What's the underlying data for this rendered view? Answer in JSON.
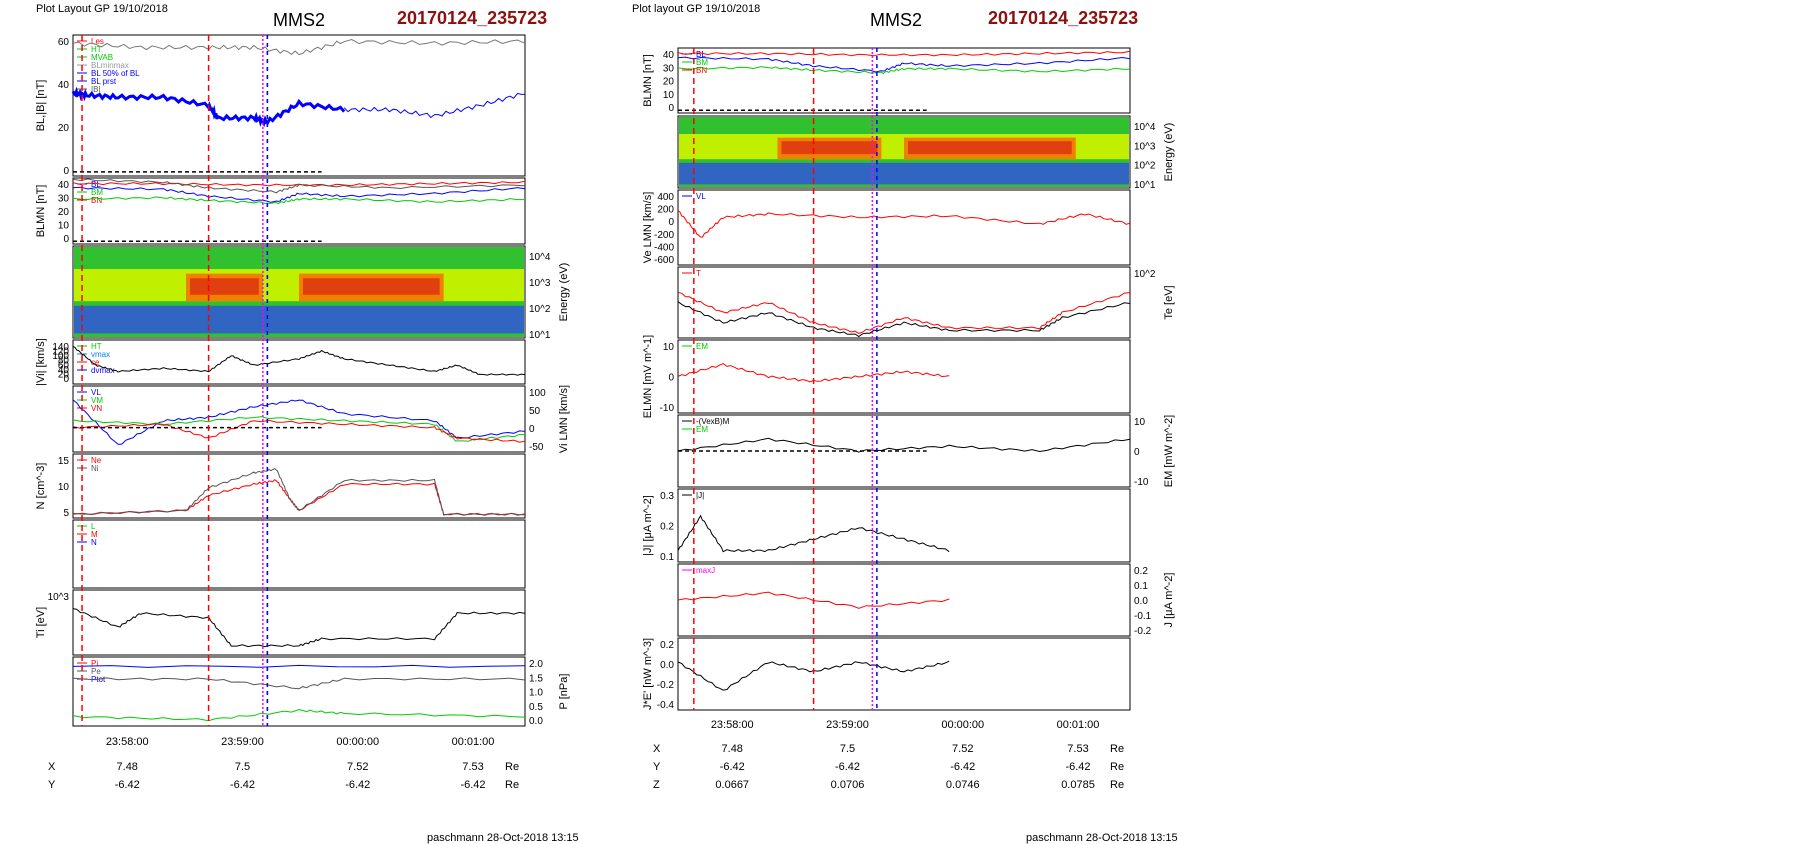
{
  "left": {
    "header_left": "Plot Layout GP 19/10/2018",
    "title": "MMS2",
    "event_id": "20170124_235723",
    "footer": "paschmann 28-Oct-2018 13:15",
    "time_ticks": [
      "23:58:00",
      "23:59:00",
      "00:00:00",
      "00:01:00"
    ],
    "ephemeris": {
      "rows": [
        {
          "label": "X",
          "values": [
            "7.48",
            "7.5",
            "7.52",
            "7.53"
          ],
          "unit": "Re"
        },
        {
          "label": "Y",
          "values": [
            "-6.42",
            "-6.42",
            "-6.42",
            "-6.42"
          ],
          "unit": "Re"
        },
        {
          "label": "Z",
          "values": [
            "0.0667",
            "0.0706",
            "0.0746",
            "0.0785"
          ],
          "unit": "Re"
        }
      ]
    }
  },
  "right": {
    "header_left": "Plot layout GP 19/10/2018",
    "title": "MMS2",
    "event_id": "20170124_235723",
    "footer": "paschmann 28-Oct-2018 13:15",
    "time_ticks": [
      "23:58:00",
      "23:59:00",
      "00:00:00",
      "00:01:00"
    ],
    "ephemeris": {
      "rows": [
        {
          "label": "X",
          "values": [
            "7.48",
            "7.5",
            "7.52",
            "7.53"
          ],
          "unit": "Re"
        },
        {
          "label": "Y",
          "values": [
            "-6.42",
            "-6.42",
            "-6.42",
            "-6.42"
          ],
          "unit": "Re"
        },
        {
          "label": "Z",
          "values": [
            "0.0667",
            "0.0706",
            "0.0746",
            "0.0785"
          ],
          "unit": "Re"
        }
      ]
    }
  },
  "chart_data": [
    {
      "type": "line",
      "page": "left",
      "panel": 1,
      "ylabel": "BL,|B| [nT]",
      "yticks": [
        "60",
        "40",
        "20",
        "0"
      ],
      "legend": [
        "Les",
        "HT",
        "MVAB",
        "BLminmax",
        "BL 50% of BL",
        "BL prst",
        "|B|"
      ],
      "series": [
        {
          "name": "|B|",
          "color": "#777777",
          "x": [
            0,
            0.15,
            0.3,
            0.4,
            0.5,
            0.6,
            0.8,
            1.0
          ],
          "values": [
            62,
            60,
            60,
            60,
            57,
            63,
            62,
            63
          ]
        },
        {
          "name": "BL",
          "color": "#0000ff",
          "x": [
            0,
            0.03,
            0.1,
            0.2,
            0.3,
            0.32,
            0.4,
            0.43,
            0.5,
            0.6
          ],
          "values": [
            38,
            37,
            36,
            36,
            32,
            26,
            26,
            24,
            33,
            30
          ]
        },
        {
          "name": "BL prst",
          "color": "#0000ff",
          "x": [
            0.6,
            0.7,
            0.8,
            0.9,
            1.0
          ],
          "values": [
            30,
            30,
            27,
            32,
            38
          ]
        }
      ],
      "ylim": [
        -2,
        66
      ]
    },
    {
      "type": "line",
      "page": "left",
      "panel": 2,
      "ylabel": "BLMN [nT]",
      "yticks": [
        "40",
        "30",
        "20",
        "10",
        "0"
      ],
      "legend": [
        "BL",
        "BM",
        "BN"
      ],
      "series": [
        {
          "name": "BL",
          "color": "#0000ff",
          "x": [
            0,
            0.2,
            0.3,
            0.45,
            0.5,
            0.6,
            0.8,
            1.0
          ],
          "values": [
            38,
            37,
            32,
            28,
            34,
            32,
            34,
            38
          ]
        },
        {
          "name": "BM",
          "color": "#00cc00",
          "x": [
            0,
            0.2,
            0.3,
            0.45,
            0.5,
            0.6,
            0.8,
            1.0
          ],
          "values": [
            30,
            31,
            29,
            27,
            30,
            30,
            28,
            30
          ]
        },
        {
          "name": "BN",
          "color": "#ff0000",
          "x": [
            0,
            0.2,
            0.4,
            0.6,
            0.8,
            1.0
          ],
          "values": [
            41,
            41,
            40,
            40,
            41,
            42
          ]
        },
        {
          "name": "|B|",
          "color": "#555555",
          "x": [
            0,
            0.2,
            0.3,
            0.45,
            0.5,
            0.7,
            1.0
          ],
          "values": [
            44,
            42,
            38,
            35,
            40,
            38,
            40
          ]
        }
      ],
      "ylim": [
        -2,
        45
      ]
    },
    {
      "type": "heatmap",
      "page": "left",
      "panel": 3,
      "ylabel": "Energy (eV)",
      "yticks": [
        "10^4",
        "10^3",
        "10^2",
        "10^1"
      ]
    },
    {
      "type": "line",
      "page": "left",
      "panel": 4,
      "ylabel": "|Vi| [km/s]",
      "yticks": [
        "140",
        "120",
        "100",
        "80",
        "60",
        "40",
        "20",
        "0"
      ],
      "legend": [
        "HT",
        "vmax",
        "ce",
        "dvmax"
      ],
      "series": [
        {
          "name": "|Vi|",
          "color": "#000000",
          "x": [
            0,
            0.05,
            0.1,
            0.2,
            0.3,
            0.35,
            0.4,
            0.5,
            0.55,
            0.6,
            0.7,
            0.8,
            0.85,
            0.9,
            1.0
          ],
          "values": [
            120,
            60,
            40,
            50,
            40,
            90,
            60,
            80,
            105,
            80,
            60,
            40,
            60,
            30,
            30
          ]
        }
      ],
      "ylim": [
        0,
        140
      ]
    },
    {
      "type": "line",
      "page": "left",
      "panel": 5,
      "ylabel": "Vi LMN [km/s]",
      "yticks": [
        "100",
        "50",
        "0",
        "-50"
      ],
      "legend": [
        "VL",
        "VM",
        "VN"
      ],
      "series": [
        {
          "name": "VL",
          "color": "#0000ff",
          "x": [
            0,
            0.1,
            0.2,
            0.3,
            0.4,
            0.5,
            0.6,
            0.8,
            0.85,
            1.0
          ],
          "values": [
            80,
            -50,
            20,
            30,
            60,
            80,
            40,
            20,
            -30,
            -10
          ]
        },
        {
          "name": "VM",
          "color": "#00cc00",
          "x": [
            0,
            0.2,
            0.4,
            0.6,
            0.8,
            0.85,
            1.0
          ],
          "values": [
            20,
            10,
            30,
            20,
            10,
            -40,
            -20
          ]
        },
        {
          "name": "VN",
          "color": "#ff0000",
          "x": [
            0,
            0.2,
            0.3,
            0.4,
            0.6,
            0.8,
            0.85,
            1.0
          ],
          "values": [
            0,
            10,
            -30,
            20,
            10,
            0,
            -30,
            -40
          ]
        }
      ],
      "ylim": [
        -70,
        120
      ]
    },
    {
      "type": "line",
      "page": "left",
      "panel": 6,
      "ylabel": "N [cm^-3]",
      "yticks": [
        "15",
        "10",
        "5"
      ],
      "legend": [
        "Ne",
        "Ni"
      ],
      "series": [
        {
          "name": "Ne",
          "color": "#ff0000",
          "x": [
            0,
            0.25,
            0.3,
            0.4,
            0.45,
            0.48,
            0.5,
            0.6,
            0.8,
            0.82,
            1.0
          ],
          "values": [
            1,
            2,
            6,
            9,
            10,
            5,
            2,
            9,
            9,
            1,
            1
          ]
        },
        {
          "name": "Ni",
          "color": "#555555",
          "x": [
            0,
            0.25,
            0.3,
            0.4,
            0.45,
            0.48,
            0.5,
            0.6,
            0.8,
            0.82,
            1.0
          ],
          "values": [
            1,
            2,
            8,
            12,
            13,
            5,
            2,
            10,
            10,
            1,
            1
          ]
        }
      ],
      "ylim": [
        0,
        17
      ]
    },
    {
      "type": "line",
      "page": "left",
      "panel": 7,
      "legend": [
        "L",
        "M",
        "N"
      ]
    },
    {
      "type": "line",
      "page": "left",
      "panel": 8,
      "ylabel": "Ti [eV]",
      "yticks": [
        "10^3"
      ],
      "series": [
        {
          "name": "Ti",
          "color": "#000000",
          "x": [
            0,
            0.1,
            0.15,
            0.3,
            0.35,
            0.5,
            0.55,
            0.8,
            0.85,
            1.0
          ],
          "values": [
            1100,
            700,
            1000,
            900,
            300,
            300,
            450,
            450,
            1000,
            1000
          ]
        }
      ],
      "ylim": [
        100,
        1500
      ]
    },
    {
      "type": "line",
      "page": "left",
      "panel": 9,
      "ylabel": "P [nPa]",
      "yticks": [
        "2.0",
        "1.5",
        "1.0",
        "0.5",
        "0.0"
      ],
      "legend": [
        "Pi",
        "Pe",
        "Ptot"
      ],
      "series": [
        {
          "name": "Ptot",
          "color": "#0000ff",
          "x": [
            0,
            1.0
          ],
          "values": [
            1.9,
            1.9
          ]
        },
        {
          "name": "Pi",
          "color": "#555555",
          "x": [
            0,
            0.3,
            0.5,
            0.6,
            1.0
          ],
          "values": [
            1.5,
            1.5,
            1.2,
            1.5,
            1.5
          ]
        },
        {
          "name": "Pe",
          "color": "#00cc00",
          "x": [
            0,
            0.3,
            0.5,
            0.6,
            1.0
          ],
          "values": [
            0.3,
            0.2,
            0.5,
            0.4,
            0.3
          ]
        }
      ],
      "ylim": [
        0,
        2.2
      ]
    },
    {
      "type": "line",
      "page": "right",
      "panel": 1,
      "ylabel": "BLMN [nT]",
      "yticks": [
        "40",
        "30",
        "20",
        "10",
        "0"
      ],
      "legend": [
        "BL",
        "BM",
        "BN"
      ],
      "series": [
        {
          "name": "BL",
          "color": "#0000ff",
          "x": [
            0,
            0.2,
            0.3,
            0.45,
            0.5,
            0.6,
            0.8,
            1.0
          ],
          "values": [
            38,
            37,
            32,
            28,
            34,
            32,
            34,
            38
          ]
        },
        {
          "name": "BM",
          "color": "#00cc00",
          "x": [
            0,
            0.2,
            0.3,
            0.45,
            0.5,
            0.6,
            0.8,
            1.0
          ],
          "values": [
            30,
            31,
            29,
            27,
            30,
            30,
            28,
            30
          ]
        },
        {
          "name": "BN",
          "color": "#ff0000",
          "x": [
            0,
            0.2,
            0.4,
            0.6,
            0.8,
            1.0
          ],
          "values": [
            41,
            41,
            40,
            40,
            41,
            42
          ]
        }
      ],
      "ylim": [
        -2,
        45
      ]
    },
    {
      "type": "heatmap",
      "page": "right",
      "panel": 2,
      "ylabel": "Energy (eV)",
      "yticks": [
        "10^4",
        "10^3",
        "10^2",
        "10^1"
      ]
    },
    {
      "type": "line",
      "page": "right",
      "panel": 3,
      "ylabel": "Ve LMN [km/s]",
      "yticks": [
        "400",
        "200",
        "0",
        "-200",
        "-400",
        "-600"
      ],
      "legend": [
        "VL"
      ],
      "series": [
        {
          "name": "Ve",
          "color": "#ff0000",
          "x": [
            0,
            0.05,
            0.1,
            0.2,
            0.4,
            0.6,
            0.8,
            0.9,
            1.0
          ],
          "values": [
            100,
            -300,
            0,
            50,
            0,
            20,
            -100,
            50,
            -100
          ]
        }
      ],
      "ylim": [
        -700,
        400
      ]
    },
    {
      "type": "line",
      "page": "right",
      "panel": 4,
      "ylabel": "Te [eV]",
      "yticks": [
        "10^2"
      ],
      "legend": [
        "T"
      ],
      "series": [
        {
          "name": "Te",
          "color": "#ff0000",
          "x": [
            0,
            0.1,
            0.2,
            0.3,
            0.4,
            0.5,
            0.6,
            0.8,
            0.85,
            1.0
          ],
          "values": [
            100,
            60,
            80,
            40,
            20,
            50,
            30,
            30,
            60,
            100
          ]
        },
        {
          "name": "Te2",
          "color": "#000000",
          "x": [
            0,
            0.1,
            0.2,
            0.3,
            0.4,
            0.5,
            0.6,
            0.8,
            0.85,
            1.0
          ],
          "values": [
            80,
            40,
            60,
            30,
            15,
            40,
            25,
            25,
            50,
            80
          ]
        }
      ],
      "ylim": [
        10,
        150
      ]
    },
    {
      "type": "line",
      "page": "right",
      "panel": 5,
      "ylabel": "ELMN [mV m^-1]",
      "yticks": [
        "10",
        "0",
        "-10"
      ],
      "legend": [
        "EM"
      ],
      "series": [
        {
          "name": "EM",
          "color": "#ff0000",
          "x": [
            0,
            0.1,
            0.2,
            0.3,
            0.4,
            0.5,
            0.6
          ],
          "values": [
            0,
            5,
            0,
            -2,
            0,
            2,
            0
          ]
        }
      ],
      "ylim": [
        -15,
        15
      ]
    },
    {
      "type": "line",
      "page": "right",
      "panel": 6,
      "ylabel": "EM [mW m^-2]",
      "yticks": [
        "10",
        "0",
        "-10"
      ],
      "legend": [
        "-(VexB)M",
        "EM"
      ],
      "series": [
        {
          "name": "EM",
          "color": "#000000",
          "x": [
            0,
            0.2,
            0.4,
            0.6,
            0.8,
            1.0
          ],
          "values": [
            0,
            5,
            0,
            2,
            0,
            5
          ]
        }
      ],
      "ylim": [
        -15,
        15
      ]
    },
    {
      "type": "line",
      "page": "right",
      "panel": 7,
      "ylabel": "|J| [μA m^-2]",
      "yticks": [
        "0.3",
        "0.2",
        "0.1"
      ],
      "legend": [
        "|J|"
      ],
      "series": [
        {
          "name": "|J|",
          "color": "#000000",
          "x": [
            0,
            0.05,
            0.1,
            0.2,
            0.3,
            0.4,
            0.5,
            0.6
          ],
          "values": [
            0.05,
            0.2,
            0.05,
            0.05,
            0.1,
            0.15,
            0.1,
            0.05
          ]
        }
      ],
      "ylim": [
        0,
        0.32
      ]
    },
    {
      "type": "line",
      "page": "right",
      "panel": 8,
      "ylabel": "J [μA m^-2]",
      "yticks": [
        "0.2",
        "0.1",
        "0.0",
        "-0.1",
        "-0.2"
      ],
      "legend": [
        "maxJ"
      ],
      "series": [
        {
          "name": "J",
          "color": "#ff0000",
          "x": [
            0,
            0.2,
            0.4,
            0.6
          ],
          "values": [
            0,
            0.05,
            -0.05,
            0
          ]
        }
      ],
      "ylim": [
        -0.25,
        0.25
      ]
    },
    {
      "type": "line",
      "page": "right",
      "panel": 9,
      "ylabel": "J*E' [nW m^-3]",
      "yticks": [
        "0.2",
        "0.0",
        "-0.2",
        "-0.4"
      ],
      "series": [
        {
          "name": "J*E'",
          "color": "#000000",
          "x": [
            0,
            0.1,
            0.2,
            0.3,
            0.4,
            0.5,
            0.6
          ],
          "values": [
            0,
            -0.3,
            0,
            -0.1,
            0,
            -0.1,
            0
          ]
        }
      ],
      "ylim": [
        -0.5,
        0.25
      ]
    }
  ]
}
